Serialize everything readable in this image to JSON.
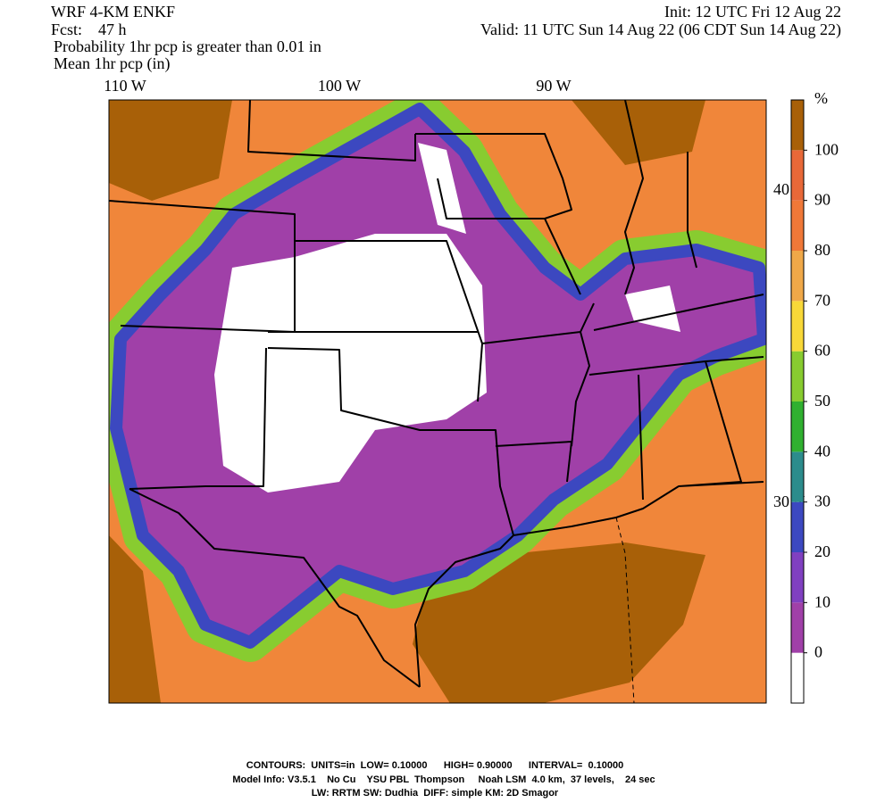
{
  "header": {
    "model": "WRF 4-KM ENKF",
    "init": "Init: 12 UTC Fri 12 Aug 22",
    "fcst": "Fcst:    47 h",
    "valid": "Valid: 11 UTC Sun 14 Aug 22 (06 CDT Sun 14 Aug 22)",
    "field1": "Probability 1hr pcp is greater than 0.01 in",
    "field2": "Mean 1hr pcp (in)"
  },
  "map": {
    "lon_labels": [
      "110 W",
      "100 W",
      "90 W"
    ],
    "lat_labels": [
      "40 N",
      "30 N"
    ]
  },
  "colorbar": {
    "unit": "%",
    "ticks": [
      0,
      10,
      20,
      30,
      40,
      50,
      60,
      70,
      80,
      90,
      100
    ],
    "colors": [
      "#ffffff",
      "#a040a8",
      "#8040c0",
      "#3c48c0",
      "#2c8c8c",
      "#30b030",
      "#88cc30",
      "#f8d838",
      "#f0a848",
      "#f07838",
      "#e86838",
      "#a86008"
    ]
  },
  "footer": {
    "line1": "CONTOURS:  UNITS=in  LOW= 0.10000      HIGH= 0.90000      INTERVAL=  0.10000",
    "line2": "Model Info: V3.5.1    No Cu    YSU PBL  Thompson     Noah LSM  4.0 km,  37 levels,    24 sec",
    "line3": "LW: RRTM SW: Dudhia  DIFF: simple KM: 2D Smagor"
  }
}
